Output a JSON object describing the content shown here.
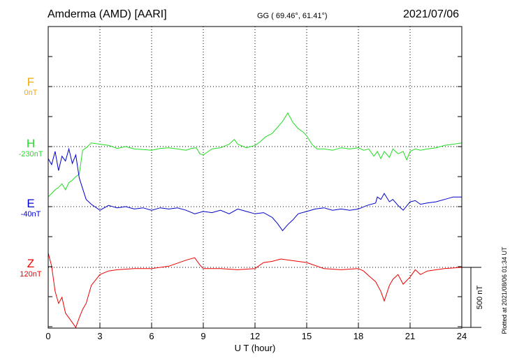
{
  "header": {
    "station": "Amderma (AMD)  [AARI]",
    "coords": "GG ( 69.46°,  61.41°)",
    "date": "2021/07/06"
  },
  "side_note": "Plotted at 2021/08/06 01:34 UT",
  "scale_label": "500 nT",
  "colors": {
    "F": "#f5a800",
    "H": "#22dd22",
    "E": "#0000cc",
    "Z": "#ee0000",
    "grid": "#000000"
  },
  "chart_data": {
    "type": "line",
    "xlabel": "U T (hour)",
    "xlim": [
      0,
      24
    ],
    "xticks": [
      "0",
      "3",
      "6",
      "9",
      "12",
      "15",
      "18",
      "21",
      "24"
    ],
    "scale_bar_nT": 500,
    "series": [
      {
        "name": "F",
        "baseline": "0nT",
        "values": []
      },
      {
        "name": "H",
        "baseline": "-230nT",
        "x": [
          0,
          0.2,
          0.4,
          0.6,
          0.8,
          1.0,
          1.2,
          1.4,
          1.6,
          1.8,
          2.0,
          2.2,
          2.5,
          3,
          3.5,
          4,
          4.5,
          5,
          5.5,
          6,
          6.5,
          7,
          7.5,
          8,
          8.3,
          8.6,
          8.8,
          9,
          9.5,
          10,
          10.5,
          10.8,
          11,
          11.5,
          12,
          12.3,
          12.6,
          13,
          13.3,
          13.6,
          13.9,
          14.2,
          14.5,
          14.8,
          15,
          15.3,
          15.6,
          16,
          16.5,
          17,
          17.5,
          18,
          18.3,
          18.6,
          18.9,
          19.1,
          19.3,
          19.5,
          19.8,
          20,
          20.3,
          20.6,
          20.8,
          21,
          21.3,
          21.6,
          22,
          22.5,
          23,
          23.5,
          24
        ],
        "values": [
          -420,
          -390,
          -360,
          -340,
          -310,
          -360,
          -300,
          -280,
          -250,
          -230,
          -30,
          -10,
          30,
          20,
          10,
          -15,
          0,
          -20,
          -25,
          -30,
          -15,
          -10,
          -20,
          -30,
          -15,
          -10,
          -60,
          -70,
          -20,
          -10,
          20,
          60,
          20,
          -10,
          10,
          40,
          80,
          110,
          160,
          210,
          280,
          200,
          150,
          120,
          90,
          20,
          -20,
          -20,
          -30,
          -10,
          -20,
          -10,
          -30,
          -20,
          -80,
          -40,
          -100,
          -40,
          -90,
          -20,
          -60,
          -40,
          -110,
          -40,
          -20,
          -30,
          -20,
          -10,
          10,
          20,
          30
        ]
      },
      {
        "name": "E",
        "baseline": "-40nT",
        "x": [
          0,
          0.2,
          0.4,
          0.6,
          0.8,
          1.0,
          1.2,
          1.4,
          1.6,
          1.8,
          2.0,
          2.2,
          2.5,
          3,
          3.5,
          4,
          4.5,
          5,
          5.5,
          6,
          6.5,
          7,
          7.5,
          8,
          8.5,
          9,
          9.5,
          10,
          10.5,
          11,
          11.5,
          12,
          12.5,
          13,
          13.3,
          13.6,
          13.9,
          14.2,
          14.5,
          15,
          15.5,
          16,
          16.5,
          17,
          17.5,
          18,
          18.5,
          19,
          19.1,
          19.3,
          19.5,
          19.8,
          20,
          20.3,
          20.6,
          21,
          21.3,
          21.6,
          22,
          22.5,
          23,
          23.5,
          24
        ],
        "values": [
          400,
          350,
          460,
          300,
          420,
          380,
          480,
          360,
          430,
          240,
          150,
          60,
          20,
          -30,
          10,
          -10,
          0,
          -20,
          -10,
          -30,
          -10,
          -20,
          -10,
          -30,
          -60,
          -40,
          -50,
          -30,
          -60,
          -20,
          -40,
          -60,
          -50,
          -90,
          -140,
          -200,
          -150,
          -110,
          -60,
          -40,
          -20,
          -10,
          -30,
          -20,
          -30,
          -20,
          10,
          30,
          80,
          60,
          110,
          40,
          60,
          10,
          -30,
          40,
          50,
          20,
          30,
          40,
          60,
          80,
          80
        ]
      },
      {
        "name": "Z",
        "baseline": "120nT",
        "x": [
          0,
          0.2,
          0.4,
          0.6,
          0.8,
          1.0,
          1.2,
          1.4,
          1.6,
          1.8,
          2.0,
          2.2,
          2.5,
          3,
          3.5,
          4,
          5,
          6,
          7,
          8,
          8.5,
          8.8,
          9,
          10,
          11,
          12,
          12.5,
          13,
          13.5,
          14,
          15,
          16,
          17,
          18,
          18.3,
          18.6,
          19,
          19.3,
          19.5,
          19.8,
          20,
          20.3,
          20.6,
          21,
          21.3,
          21.6,
          22,
          23,
          24
        ],
        "values": [
          120,
          10,
          -200,
          -300,
          -250,
          -380,
          -420,
          -460,
          -500,
          -420,
          -350,
          -300,
          -150,
          -60,
          -30,
          -20,
          -10,
          -10,
          10,
          60,
          80,
          20,
          -10,
          -10,
          -20,
          -10,
          40,
          50,
          70,
          60,
          40,
          -10,
          -20,
          -10,
          -30,
          -70,
          -120,
          -200,
          -280,
          -150,
          -100,
          -60,
          -140,
          -80,
          -20,
          -60,
          -30,
          -10,
          0
        ]
      }
    ]
  }
}
